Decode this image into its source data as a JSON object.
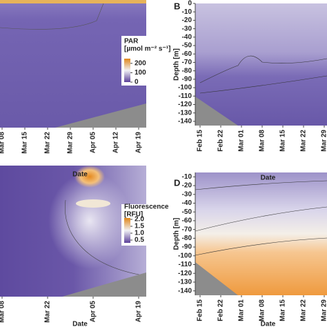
{
  "chart_data": [
    {
      "type": "contour",
      "xlabel": "Date",
      "categories": [
        "Mar 08",
        "Mar 15",
        "Mar 22",
        "Mar 29",
        "Apr 05",
        "Apr 12",
        "Apr 19"
      ],
      "colorbar": {
        "title": "PAR",
        "unit": "[µmol m⁻² s⁻¹]",
        "lim": [
          0,
          250
        ],
        "ticks": [
          200,
          100,
          0
        ],
        "colors": [
          "#5b3f99",
          "#f0f0f4",
          "#e0861a"
        ]
      }
    },
    {
      "type": "contour",
      "panel": "B",
      "xlabel": "Date",
      "ylabel": "Depth [m]",
      "categories": [
        "Feb 15",
        "Feb 22",
        "Mar 01",
        "Mar 08",
        "Mar 15",
        "Mar 22",
        "Mar 29"
      ],
      "ylim": [
        -145,
        0
      ],
      "yticks": [
        0,
        -10,
        -20,
        -30,
        -40,
        -50,
        -60,
        -70,
        -80,
        -90,
        -100,
        -110,
        -120,
        -130,
        -140
      ]
    },
    {
      "type": "contour",
      "xlabel": "Date",
      "categories": [
        "Mar 08",
        "Mar 22",
        "Apr 05",
        "Apr 19"
      ],
      "colorbar": {
        "title": "Fluorescence",
        "unit": "[RFU]",
        "lim": [
          0.3,
          2.1
        ],
        "ticks": [
          {
            "value": 2,
            "label": "2.0"
          },
          1.5,
          {
            "value": 1,
            "label": "1.0"
          },
          0.5
        ],
        "colors": [
          "#5b3f99",
          "#f0f0f4",
          "#e0861a"
        ]
      }
    },
    {
      "type": "contour",
      "panel": "D",
      "xlabel": "Date",
      "ylabel": "Depth [m]",
      "categories": [
        "Feb 15",
        "Feb 22",
        "Mar 01",
        "Mar 08",
        "Mar 15",
        "Mar 22",
        "Mar 29"
      ],
      "ylim": [
        -145,
        -5
      ],
      "yticks": [
        -10,
        -20,
        -30,
        -40,
        -50,
        -60,
        -70,
        -80,
        -90,
        -100,
        -110,
        -120,
        -130,
        -140
      ]
    }
  ]
}
